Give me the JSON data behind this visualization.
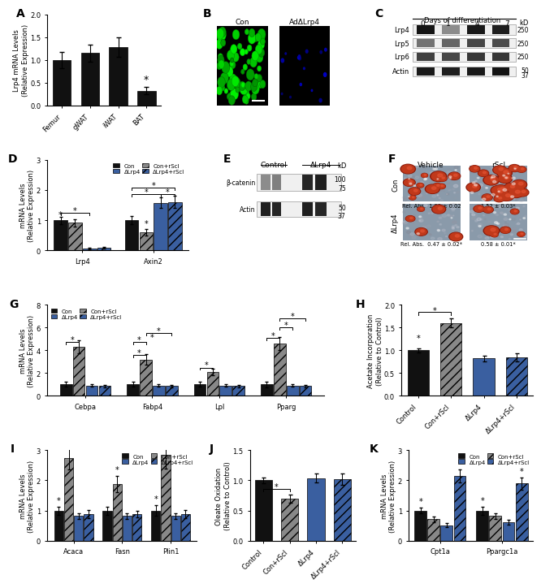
{
  "panel_A": {
    "categories": [
      "Femur",
      "gWAT",
      "iWAT",
      "BAT"
    ],
    "values": [
      1.0,
      1.15,
      1.28,
      0.32
    ],
    "errors": [
      0.18,
      0.18,
      0.22,
      0.08
    ],
    "ylabel": "Lrp4 mRNA Levels\n(Relative Expression)",
    "ylim": [
      0,
      2.0
    ],
    "yticks": [
      0.0,
      0.5,
      1.0,
      1.5,
      2.0
    ]
  },
  "panel_D": {
    "groups": [
      "Lrp4",
      "Axin2"
    ],
    "values": [
      [
        1.0,
        0.92,
        0.07,
        0.09
      ],
      [
        1.0,
        0.6,
        1.58,
        1.6
      ]
    ],
    "errors": [
      [
        0.12,
        0.12,
        0.02,
        0.03
      ],
      [
        0.14,
        0.1,
        0.18,
        0.2
      ]
    ],
    "ylabel": "mRNA Levels\n(Relative Expression)",
    "ylim": [
      0,
      3
    ],
    "yticks": [
      0,
      1,
      2,
      3
    ]
  },
  "panel_G": {
    "groups": [
      "Cebpa",
      "Fabp4",
      "Lpl",
      "Pparg"
    ],
    "values": [
      [
        1.0,
        4.3,
        0.9,
        0.85
      ],
      [
        1.0,
        3.2,
        0.9,
        0.85
      ],
      [
        1.0,
        2.1,
        0.9,
        0.85
      ],
      [
        1.0,
        4.6,
        0.9,
        0.85
      ]
    ],
    "errors": [
      [
        0.2,
        0.55,
        0.1,
        0.1
      ],
      [
        0.2,
        0.48,
        0.1,
        0.1
      ],
      [
        0.2,
        0.28,
        0.1,
        0.1
      ],
      [
        0.25,
        0.55,
        0.1,
        0.1
      ]
    ],
    "ylabel": "mRNA Levels\n(Relative Expression)",
    "ylim": [
      0,
      8
    ],
    "yticks": [
      0,
      2,
      4,
      6,
      8
    ]
  },
  "panel_H": {
    "values": [
      1.0,
      1.6,
      0.82,
      0.85
    ],
    "errors": [
      0.05,
      0.1,
      0.07,
      0.09
    ],
    "ylabel": "Acetate Incorporation\n(Relative to Control)",
    "ylim": [
      0,
      2.0
    ],
    "yticks": [
      0.0,
      0.5,
      1.0,
      1.5,
      2.0
    ],
    "xlabels": [
      "Control",
      "Con+rScl",
      "ΔLrp4",
      "ΔLrp4+rScl"
    ]
  },
  "panel_I": {
    "groups": [
      "Acaca",
      "Fasn",
      "Plin1"
    ],
    "values": [
      [
        1.0,
        2.75,
        0.82,
        0.88
      ],
      [
        1.0,
        1.88,
        0.82,
        0.88
      ],
      [
        1.0,
        2.85,
        0.82,
        0.88
      ]
    ],
    "errors": [
      [
        0.14,
        0.38,
        0.09,
        0.13
      ],
      [
        0.14,
        0.28,
        0.09,
        0.11
      ],
      [
        0.18,
        0.45,
        0.1,
        0.13
      ]
    ],
    "ylabel": "mRNA Levels\n(Relative Expression)",
    "ylim": [
      0,
      3
    ],
    "yticks": [
      0,
      1,
      2,
      3
    ]
  },
  "panel_J": {
    "values": [
      1.0,
      0.7,
      1.04,
      1.02
    ],
    "errors": [
      0.05,
      0.07,
      0.08,
      0.09
    ],
    "ylabel": "Oleate Oxidation\n(Relative to Control)",
    "ylim": [
      0,
      1.5
    ],
    "yticks": [
      0.0,
      0.5,
      1.0,
      1.5
    ],
    "xlabels": [
      "Control",
      "Con+rScl",
      "ΔLrp4",
      "ΔLrp4+rScl"
    ]
  },
  "panel_K": {
    "groups": [
      "Cpt1a",
      "Ppargc1a"
    ],
    "values": [
      [
        1.0,
        0.72,
        0.52,
        2.15
      ],
      [
        1.0,
        0.82,
        0.62,
        1.9
      ]
    ],
    "errors": [
      [
        0.1,
        0.09,
        0.07,
        0.22
      ],
      [
        0.13,
        0.1,
        0.09,
        0.2
      ]
    ],
    "ylabel": "mRNA Levels\n(Relative Expression)",
    "ylim": [
      0,
      3
    ],
    "yticks": [
      0,
      1,
      2,
      3
    ]
  },
  "conditions": [
    "Con",
    "Con+rScl",
    "ΔLrp4",
    "ΔLrp4+rScl"
  ],
  "black_color": "#111111",
  "gray_color": "#888888",
  "blue_color": "#3a5fa0",
  "blue_hatch_color": "#3a5fa0"
}
